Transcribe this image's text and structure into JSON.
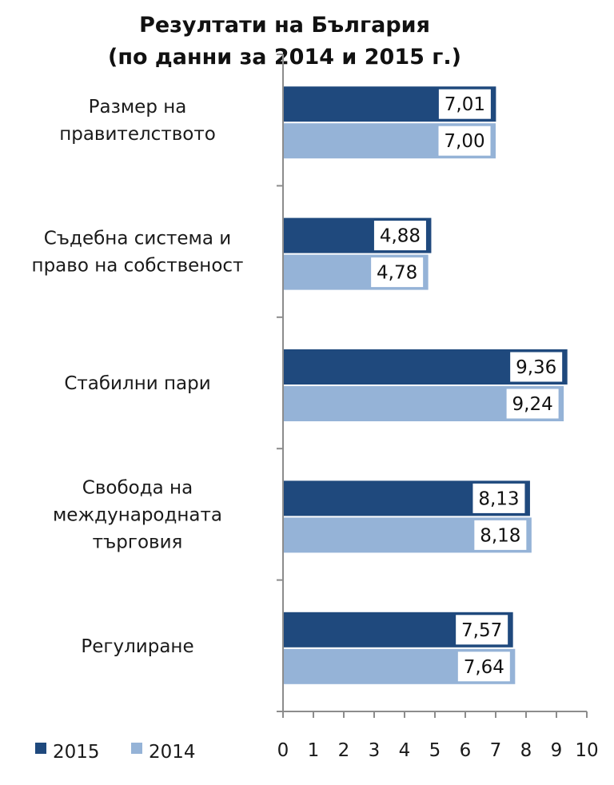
{
  "chart_data": {
    "type": "bar",
    "orientation": "horizontal",
    "title": "Резултати на България\n(по данни за 2014 и 2015 г.)",
    "categories": [
      "Размер на\nправителството",
      "Съдебна  система и\nправо на собственост",
      "Стабилни пари",
      "Свобода на\nмеждународната\nтърговия",
      "Регулиране"
    ],
    "series": [
      {
        "name": "2015",
        "color": "#1f497d",
        "values": [
          7.01,
          4.88,
          9.36,
          8.13,
          7.57
        ],
        "labels": [
          "7,01",
          "4,88",
          "9,36",
          "8,13",
          "7,57"
        ]
      },
      {
        "name": "2014",
        "color": "#95b3d7",
        "values": [
          7.0,
          4.78,
          9.24,
          8.18,
          7.64
        ],
        "labels": [
          "7,00",
          "4,78",
          "9,24",
          "8,18",
          "7,64"
        ]
      }
    ],
    "xlim": [
      0,
      10
    ],
    "xticks": [
      "0",
      "1",
      "2",
      "3",
      "4",
      "5",
      "6",
      "7",
      "8",
      "9",
      "10"
    ],
    "grid": false,
    "legend_position": "bottom-left"
  }
}
